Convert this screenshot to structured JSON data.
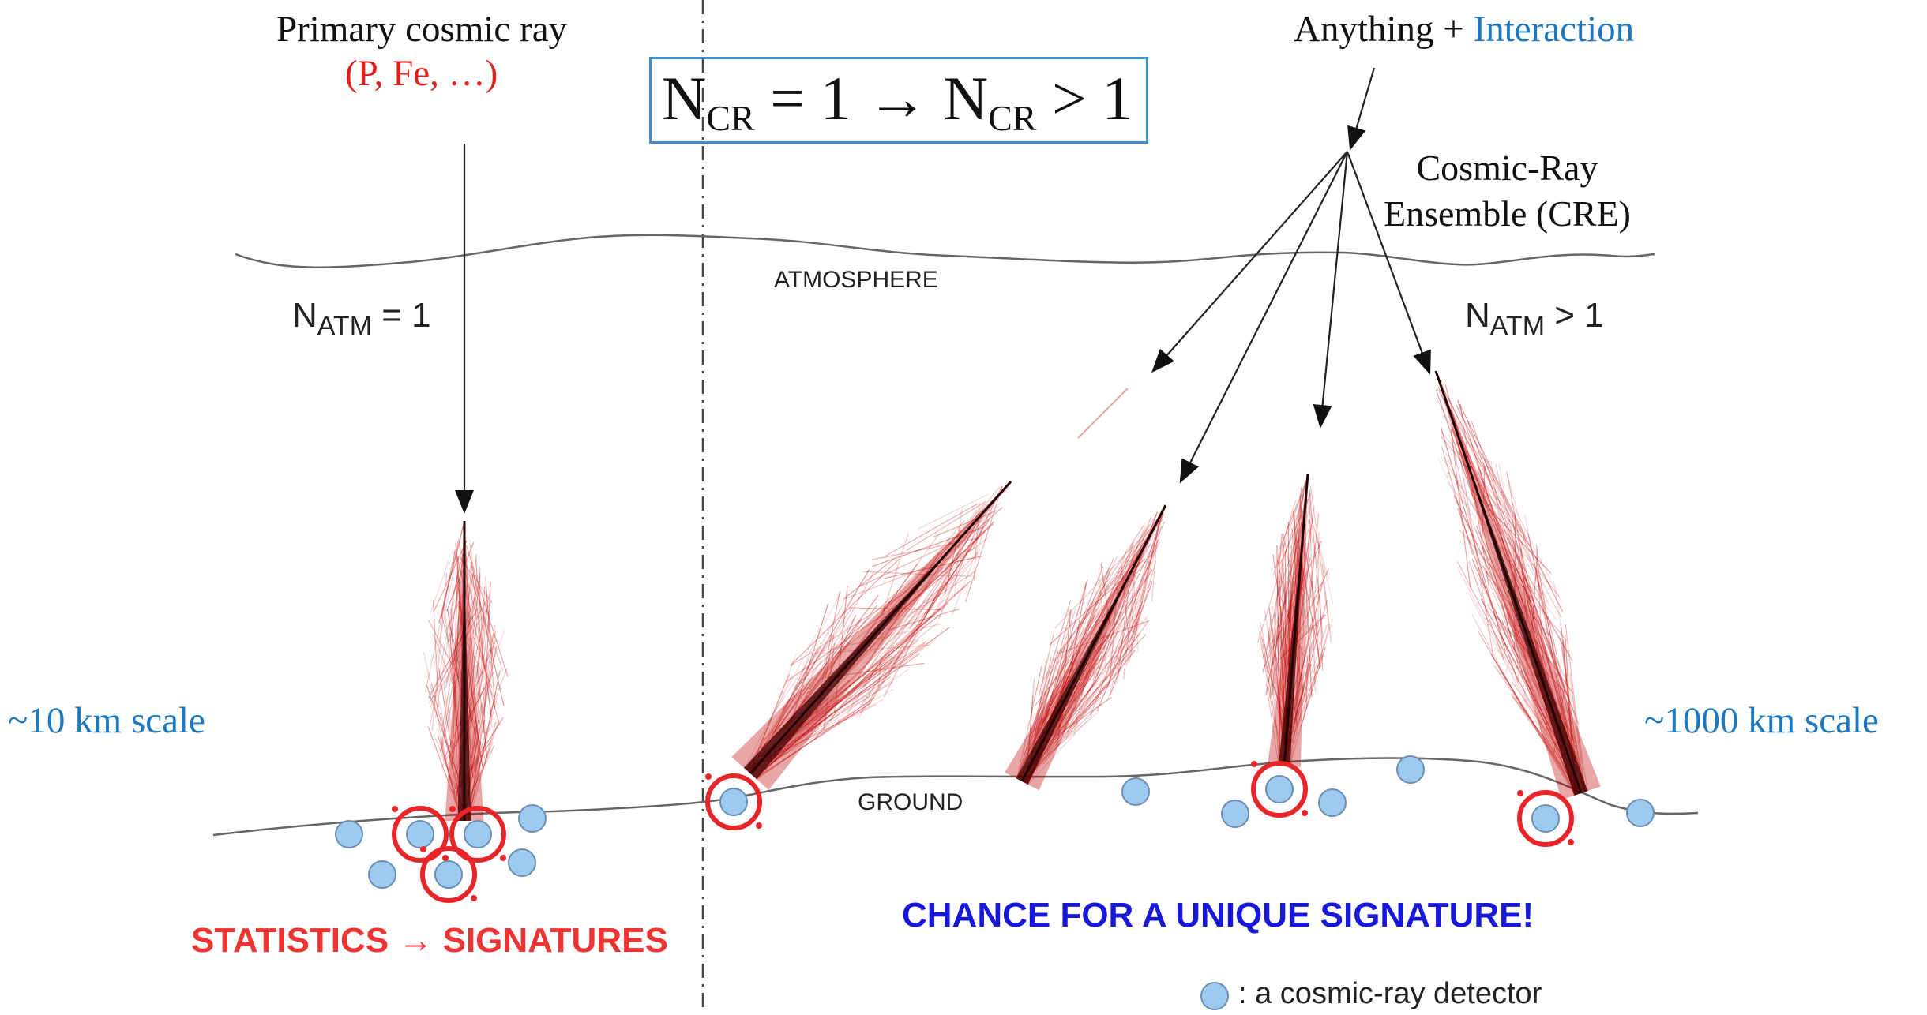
{
  "primary": {
    "title": "Primary cosmic ray",
    "subtitle": "(P, Fe, …)"
  },
  "right_title": {
    "text": "Anything + ",
    "accent": "Interaction"
  },
  "formula": {
    "left_symbol": "N",
    "left_sub": "CR",
    "left_rest": " = 1 → ",
    "right_symbol": "N",
    "right_sub": "CR",
    "right_rest": " > 1"
  },
  "cre": {
    "line1": "Cosmic-Ray",
    "line2": "Ensemble (CRE)"
  },
  "natm_left": {
    "symbol": "N",
    "sub": "ATM",
    "rest": " = 1"
  },
  "natm_right": {
    "symbol": "N",
    "sub": "ATM",
    "rest": " > 1"
  },
  "labels": {
    "atmosphere": "ATMOSPHERE",
    "ground": "GROUND",
    "scale_left": "~10 km scale",
    "scale_right": "~1000 km scale",
    "statistics": "STATISTICS → SIGNATURES",
    "chance": "CHANCE FOR A UNIQUE SIGNATURE!",
    "legend": ": a cosmic-ray detector"
  },
  "colors": {
    "shower": "#c00000",
    "detector_fill": "#9ec9f0",
    "detector_stroke": "#6c8fb0",
    "highlight_ring": "#e8262a",
    "accent_blue": "#1c78c0",
    "signature_blue": "#1818d8",
    "statistics_red": "#ee3333"
  }
}
